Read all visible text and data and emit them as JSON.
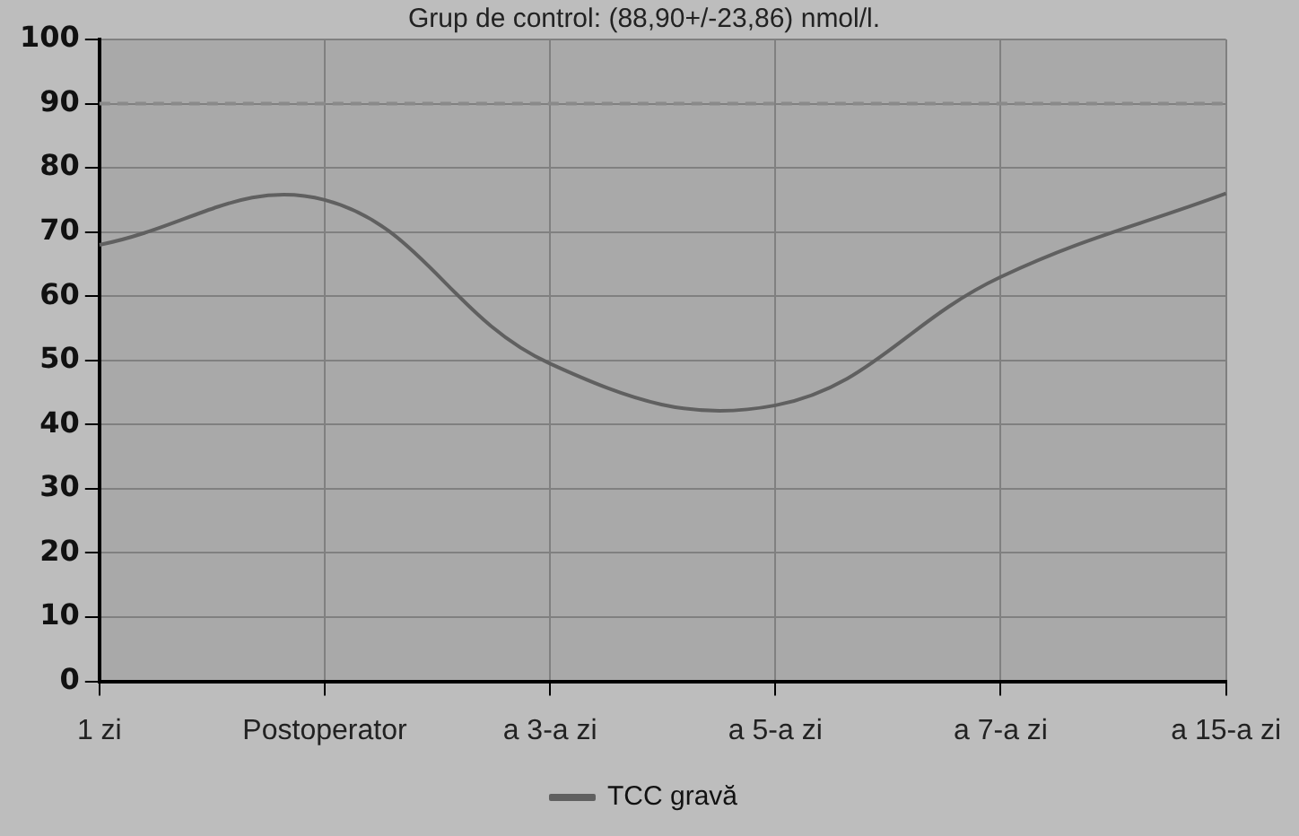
{
  "chart_data": {
    "type": "line",
    "title": "Grup de control: (88,90+/-23,86) nmol/l.",
    "categories": [
      "1 zi",
      "Postoperator",
      "a 3-a zi",
      "a 5-a zi",
      "a 7-a zi",
      "a 15-a zi"
    ],
    "series": [
      {
        "name": "TCC gravă",
        "color": "#606060",
        "values": [
          68,
          75,
          49.5,
          43,
          63,
          76
        ]
      }
    ],
    "ylim": [
      0,
      100
    ],
    "yticks": [
      0,
      10,
      20,
      30,
      40,
      50,
      60,
      70,
      80,
      90,
      100
    ],
    "grid": true,
    "legend": "bottom",
    "marker": "none",
    "line_style": "solid",
    "ref_lines": [
      {
        "axis": "y",
        "value": 90,
        "color": "#8a8a8a",
        "line_style": "dashed"
      }
    ]
  }
}
